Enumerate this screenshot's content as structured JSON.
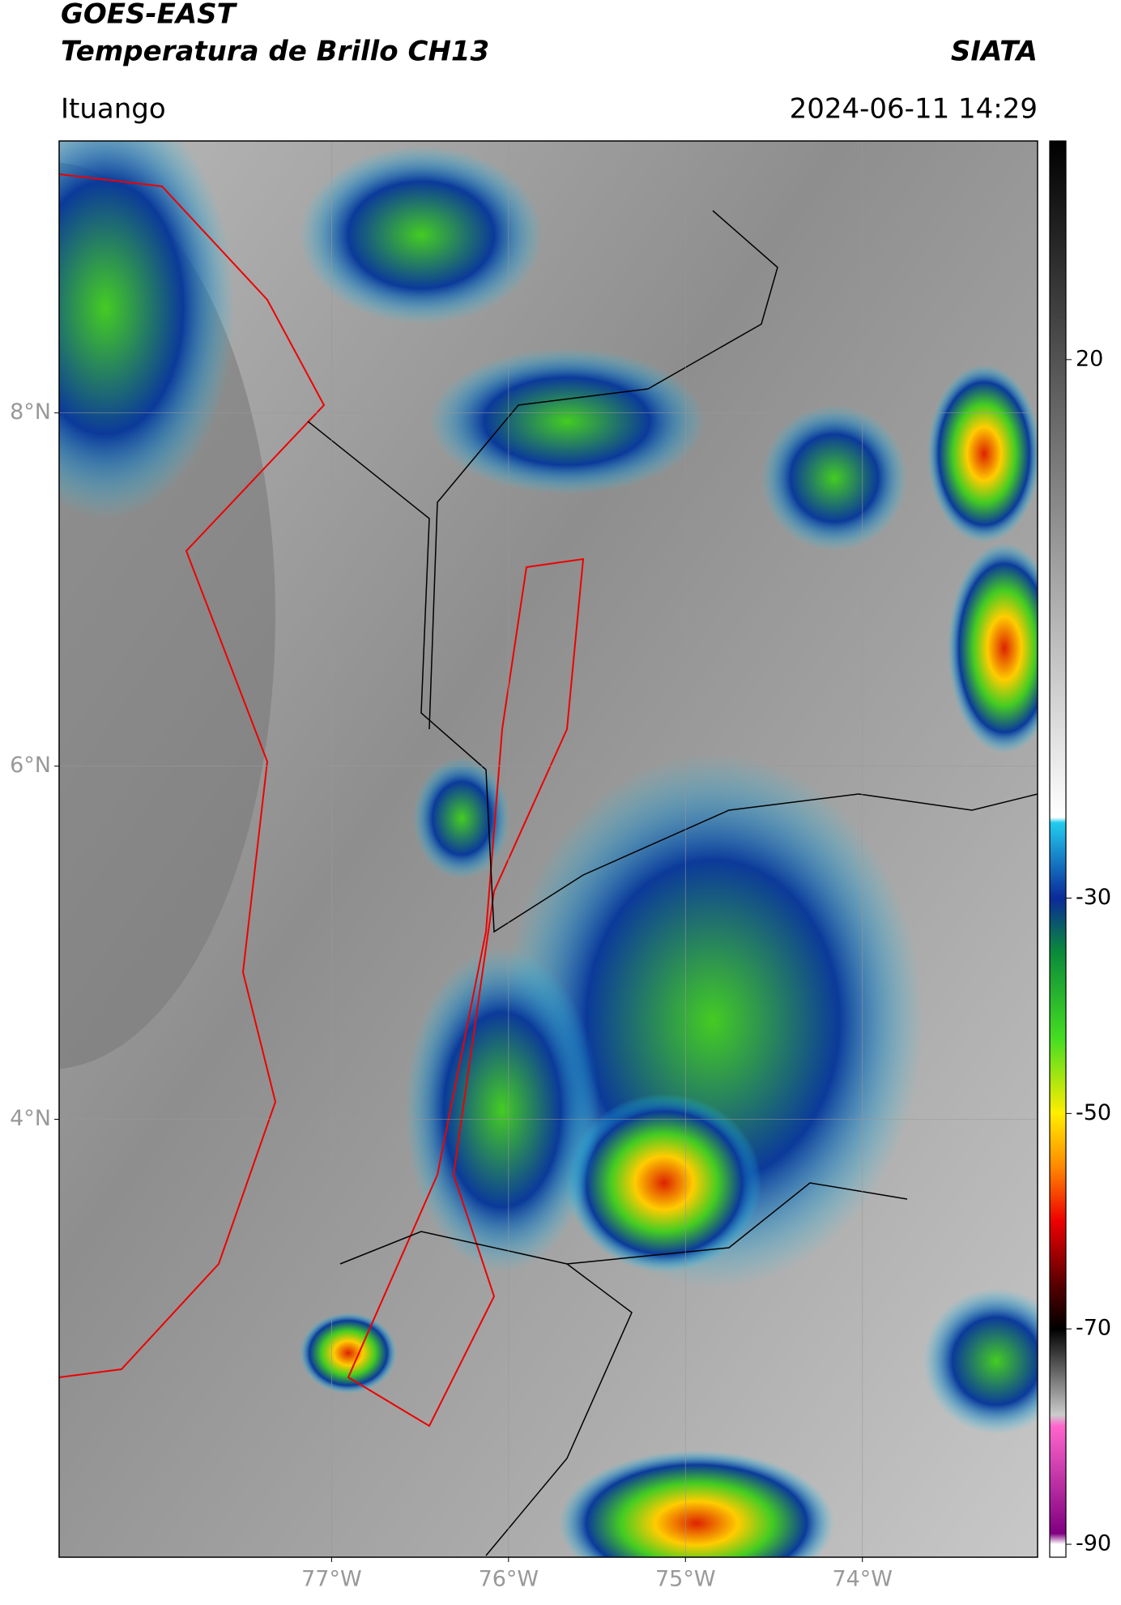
{
  "header": {
    "title": "GOES-EAST",
    "subtitle": "Temperatura de Brillo CH13",
    "brand": "SIATA",
    "location": "Ituango",
    "datetime": "2024-06-11 14:29"
  },
  "map": {
    "xlim": [
      -78.54,
      -73.01
    ],
    "ylim": [
      1.52,
      9.54
    ],
    "lat_ticks": [
      {
        "value": 8,
        "label": "8°N"
      },
      {
        "value": 6,
        "label": "6°N"
      },
      {
        "value": 4,
        "label": "4°N"
      }
    ],
    "lon_ticks": [
      {
        "value": -77,
        "label": "77°W"
      },
      {
        "value": -76,
        "label": "76°W"
      },
      {
        "value": -75,
        "label": "75°W"
      },
      {
        "value": -74,
        "label": "74°W"
      }
    ],
    "grid": true
  },
  "colorbar": {
    "lim": [
      -91.2,
      40.3
    ],
    "ticks": [
      20,
      -30,
      -50,
      -70,
      -90
    ],
    "stops": [
      {
        "value": 40.3,
        "color": "#000000"
      },
      {
        "value": -22.5,
        "color": "#ffffff"
      },
      {
        "value": -23,
        "color": "#22ccee"
      },
      {
        "value": -30,
        "color": "#0a2a9a"
      },
      {
        "value": -35,
        "color": "#0a8a3a"
      },
      {
        "value": -43,
        "color": "#44dd22"
      },
      {
        "value": -50,
        "color": "#ffee00"
      },
      {
        "value": -55,
        "color": "#ff8800"
      },
      {
        "value": -60,
        "color": "#ee0000"
      },
      {
        "value": -66,
        "color": "#550000"
      },
      {
        "value": -70,
        "color": "#000000"
      },
      {
        "value": -78,
        "color": "#cccccc"
      },
      {
        "value": -79,
        "color": "#ff66cc"
      },
      {
        "value": -89,
        "color": "#800080"
      },
      {
        "value": -90,
        "color": "#ffffff"
      }
    ]
  }
}
